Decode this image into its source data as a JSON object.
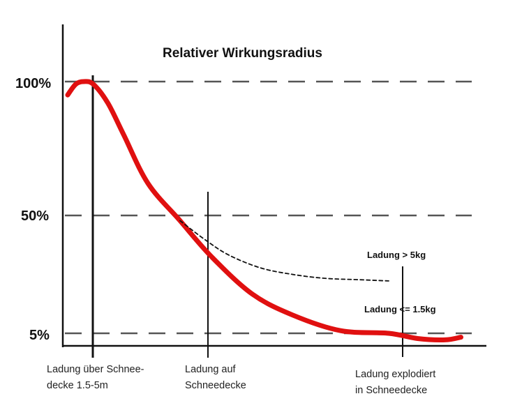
{
  "chart_data": {
    "type": "line",
    "title": "Relativer Wirkungsradius",
    "xlabel": "",
    "ylabel": "",
    "y_ticks": [
      "100%",
      "5%",
      "50%"
    ],
    "y_tick_values": [
      100,
      5,
      50
    ],
    "ylim": [
      0,
      102
    ],
    "grid": "dashed horizontal lines at 100%, 50%, 5%",
    "positions": [
      {
        "label_lines": [
          "Ladung über Schnee-",
          "decke 1.5-5m"
        ]
      },
      {
        "label_lines": [
          "Ladung auf",
          "Schneedecke"
        ]
      },
      {
        "label_lines": [
          "Ladung explodiert",
          "in Schneedecke"
        ]
      }
    ],
    "series": [
      {
        "color": "#e01010",
        "style": "solid-thick",
        "points": [
          [
            0,
            95
          ],
          [
            0.05,
            99
          ],
          [
            0.1,
            100
          ],
          [
            0.16,
            99
          ],
          [
            0.25,
            92
          ],
          [
            0.35,
            80
          ],
          [
            0.5,
            62
          ],
          [
            0.7,
            48
          ],
          [
            0.9,
            34
          ],
          [
            1.15,
            20
          ],
          [
            1.4,
            12
          ],
          [
            1.7,
            6
          ],
          [
            2.0,
            5
          ],
          [
            2.18,
            3
          ],
          [
            2.35,
            2.5
          ],
          [
            2.45,
            3.5
          ]
        ]
      },
      {
        "name": "Ladung > 5kg",
        "color": "#111111",
        "style": "dashed",
        "points": [
          [
            0.7,
            48
          ],
          [
            0.85,
            41
          ],
          [
            1.0,
            35
          ],
          [
            1.2,
            30
          ],
          [
            1.4,
            27.5
          ],
          [
            1.6,
            26
          ],
          [
            1.8,
            25.5
          ],
          [
            2.0,
            25
          ]
        ]
      }
    ],
    "annotations": [
      "Ladung > 5kg",
      "Ladung <= 1.5kg"
    ],
    "legend": "none"
  },
  "colors": {
    "curve": "#e01010",
    "axis": "#111111",
    "grid": "#555555"
  }
}
